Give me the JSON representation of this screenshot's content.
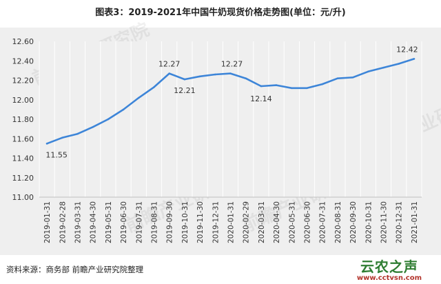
{
  "title": "图表3：2019-2021年中国牛奶现货价格走势图(单位：元/升)",
  "source": "资料来源：商务部 前瞻产业研究院整理",
  "watermark": "前瞻产业研究院",
  "site": {
    "name": "云农之声",
    "url": "www.cctvsn.com"
  },
  "chart_data": {
    "type": "line",
    "categories": [
      "2019-01-31",
      "2019-02-28",
      "2019-03-31",
      "2019-04-30",
      "2019-05-31",
      "2019-06-30",
      "2019-07-31",
      "2019-08-31",
      "2019-09-30",
      "2019-10-31",
      "2019-11-30",
      "2019-12-31",
      "2020-01-31",
      "2020-02-29",
      "2020-03-31",
      "2020-04-30",
      "2020-05-31",
      "2020-06-30",
      "2020-07-31",
      "2020-08-31",
      "2020-09-30",
      "2020-10-31",
      "2020-11-30",
      "2020-12-31",
      "2021-01-31"
    ],
    "values": [
      11.55,
      11.61,
      11.65,
      11.72,
      11.8,
      11.9,
      12.02,
      12.13,
      12.27,
      12.21,
      12.24,
      12.26,
      12.27,
      12.22,
      12.14,
      12.15,
      12.12,
      12.12,
      12.16,
      12.22,
      12.23,
      12.29,
      12.33,
      12.37,
      12.42
    ],
    "data_labels": [
      {
        "index": 0,
        "text": "11.55"
      },
      {
        "index": 8,
        "text": "12.27"
      },
      {
        "index": 9,
        "text": "12.21"
      },
      {
        "index": 12,
        "text": "12.27"
      },
      {
        "index": 14,
        "text": "12.14"
      },
      {
        "index": 24,
        "text": "12.42"
      }
    ],
    "yticks": [
      "11.00",
      "11.20",
      "11.40",
      "11.60",
      "11.80",
      "12.00",
      "12.20",
      "12.40",
      "12.60"
    ],
    "ylim": [
      11.0,
      12.6
    ],
    "grid": "vertical",
    "line_color": "#3d85d8"
  }
}
